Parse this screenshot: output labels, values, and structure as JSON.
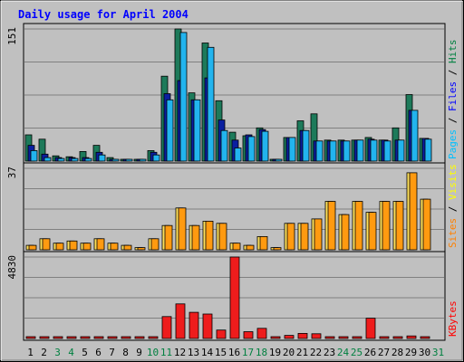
{
  "chart_data": {
    "type": "bar",
    "title": "Daily usage for April 2004",
    "categories": [
      "1",
      "2",
      "3",
      "4",
      "5",
      "6",
      "7",
      "8",
      "9",
      "10",
      "11",
      "12",
      "13",
      "14",
      "15",
      "16",
      "17",
      "18",
      "19",
      "20",
      "21",
      "22",
      "23",
      "24",
      "25",
      "26",
      "27",
      "28",
      "29",
      "30",
      "31"
    ],
    "weekend_days": [
      "3",
      "4",
      "10",
      "11",
      "17",
      "18",
      "24",
      "25",
      "31"
    ],
    "panels": [
      {
        "name": "hits-files-pages",
        "scale_max_label": "151",
        "scale_max": 151,
        "legend": [
          {
            "label": "Pages",
            "color": "#00c0ff"
          },
          {
            "label": " / ",
            "color": "#000000"
          },
          {
            "label": "Files",
            "color": "#0000ff"
          },
          {
            "label": " / ",
            "color": "#000000"
          },
          {
            "label": "Hits",
            "color": "#008040"
          }
        ],
        "series": [
          {
            "name": "Hits",
            "color": "#1d7a5a",
            "values": [
              30,
              25,
              6,
              5,
              11,
              18,
              4,
              2,
              2,
              12,
              97,
              151,
              78,
              135,
              69,
              33,
              29,
              38,
              2,
              27,
              46,
              54,
              24,
              24,
              24,
              27,
              24,
              38,
              76,
              26,
              0
            ]
          },
          {
            "name": "Files",
            "color": "#0a1fa0",
            "values": [
              18,
              8,
              4,
              4,
              4,
              10,
              2,
              2,
              2,
              10,
              77,
              92,
              70,
              95,
              47,
              24,
              30,
              36,
              1,
              27,
              35,
              23,
              23,
              23,
              24,
              25,
              24,
              24,
              58,
              26,
              0
            ]
          },
          {
            "name": "Pages",
            "color": "#22b4ee",
            "values": [
              12,
              4,
              3,
              3,
              3,
              7,
              1,
              1,
              1,
              7,
              70,
              147,
              70,
              130,
              35,
              15,
              28,
              34,
              1,
              27,
              35,
              23,
              23,
              23,
              24,
              24,
              23,
              24,
              58,
              25,
              0
            ]
          }
        ]
      },
      {
        "name": "visits-sites",
        "scale_max_label": "37",
        "scale_max": 37,
        "legend": [
          {
            "label": "Sites",
            "color": "#ff8000"
          },
          {
            "label": " / ",
            "color": "#000000"
          },
          {
            "label": "Visits",
            "color": "#ffff00"
          }
        ],
        "series": [
          {
            "name": "Visits",
            "color": "#ffe05a",
            "values": [
              2,
              5,
              3,
              4,
              3,
              5,
              3,
              2,
              1,
              5,
              11,
              19,
              11,
              13,
              12,
              3,
              2,
              6,
              1,
              12,
              12,
              14,
              22,
              16,
              22,
              17,
              22,
              22,
              35,
              23,
              0
            ]
          },
          {
            "name": "Sites",
            "color": "#ff9a10",
            "values": [
              2,
              5,
              3,
              4,
              3,
              5,
              3,
              2,
              1,
              5,
              11,
              19,
              11,
              13,
              12,
              3,
              2,
              6,
              1,
              12,
              12,
              14,
              22,
              16,
              22,
              17,
              22,
              22,
              35,
              23,
              0
            ]
          }
        ]
      },
      {
        "name": "kbytes",
        "scale_max_label": "4830",
        "scale_max": 4830,
        "legend": [
          {
            "label": "KBytes",
            "color": "#ff0000"
          }
        ],
        "series": [
          {
            "name": "KBytes",
            "color": "#ee1c1c",
            "values": [
              90,
              85,
              40,
              35,
              40,
              60,
              30,
              25,
              20,
              50,
              1300,
              2050,
              1550,
              1450,
              500,
              4830,
              400,
              600,
              30,
              180,
              300,
              280,
              40,
              40,
              40,
              1200,
              50,
              45,
              150,
              50,
              0
            ]
          }
        ]
      }
    ]
  }
}
